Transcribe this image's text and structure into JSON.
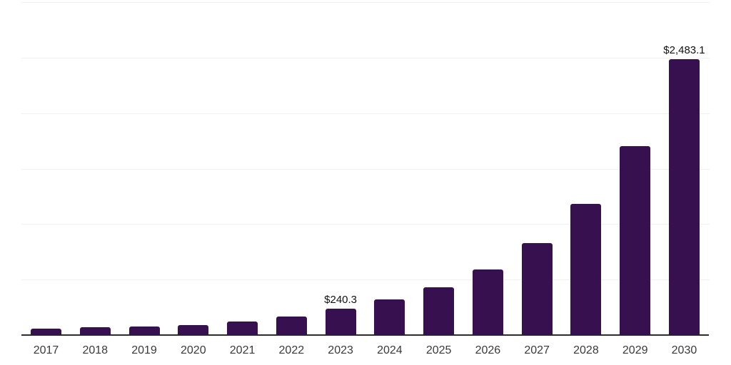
{
  "chart_data": {
    "type": "bar",
    "title": "",
    "xlabel": "",
    "ylabel": "",
    "categories": [
      "2017",
      "2018",
      "2019",
      "2020",
      "2021",
      "2022",
      "2023",
      "2024",
      "2025",
      "2026",
      "2027",
      "2028",
      "2029",
      "2030"
    ],
    "values": [
      58,
      68,
      75,
      90,
      122,
      166,
      240.3,
      320,
      433,
      593,
      830,
      1180,
      1700,
      2483.1
    ],
    "value_labels": [
      "",
      "",
      "",
      "",
      "",
      "",
      "$240.3",
      "",
      "",
      "",
      "",
      "",
      "",
      "$2,483.1"
    ],
    "currency_prefix": "$",
    "ylim": [
      0,
      3000
    ],
    "gridline_step": 500,
    "grid": "horizontal-only",
    "legend": "none",
    "y_axis_tick_labels_visible": false
  },
  "colors": {
    "background": "#ffffff",
    "bar": "#37114f",
    "axis": "#2d2d2d",
    "gridline": "#f1f1f1",
    "tick_label": "#3a3a3a",
    "value_label": "#111111"
  }
}
